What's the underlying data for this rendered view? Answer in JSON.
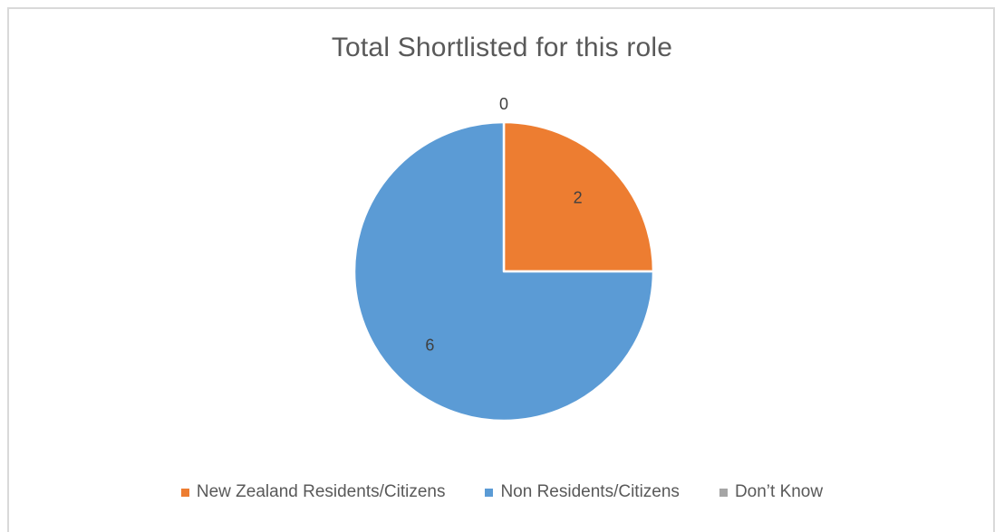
{
  "chart_data": {
    "type": "pie",
    "title": "Total Shortlisted for this role",
    "categories": [
      "New Zealand Residents/Citizens",
      "Non Residents/Citizens",
      "Don’t Know"
    ],
    "values": [
      2,
      6,
      0
    ],
    "data_labels": [
      "2",
      "6",
      "0"
    ],
    "colors": [
      "#ED7D31",
      "#5B9BD5",
      "#A5A5A5"
    ],
    "legend_position": "bottom",
    "start_angle_deg": 0,
    "direction": "clockwise"
  }
}
